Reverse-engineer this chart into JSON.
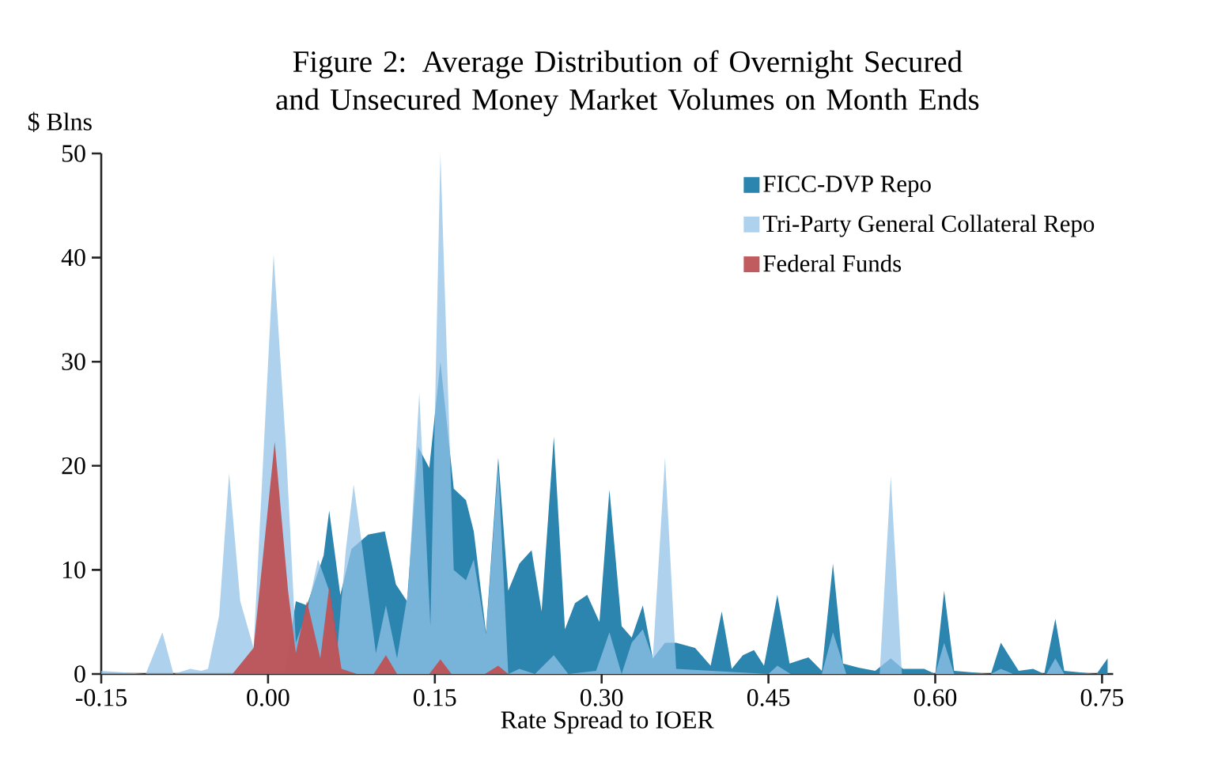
{
  "chart_data": {
    "type": "area",
    "title": "Figure 2: Average Distribution of Overnight Secured and Unsecured Money Market Volumes on Month Ends",
    "ylabel": "$ Blns",
    "xlabel": "Rate Spread to IOER",
    "xlim": [
      -0.15,
      0.76
    ],
    "ylim": [
      0,
      50
    ],
    "xticks": [
      -0.15,
      {
        "value": 0,
        "label": "0.00"
      },
      0.15,
      {
        "value": 0.3,
        "label": "0.30"
      },
      0.45,
      {
        "value": 0.6,
        "label": "0.60"
      },
      0.75
    ],
    "yticks": [
      0,
      10,
      20,
      30,
      40,
      50
    ],
    "legend": "top right",
    "grid": false,
    "series": [
      {
        "name": "FICC-DVP Repo",
        "color": "#2b85ae",
        "x": [
          -0.15,
          0.015,
          0.025,
          0.035,
          0.05,
          0.055,
          0.065,
          0.075,
          0.09,
          0.105,
          0.115,
          0.125,
          0.135,
          0.145,
          0.155,
          0.167,
          0.178,
          0.185,
          0.196,
          0.207,
          0.216,
          0.226,
          0.237,
          0.246,
          0.257,
          0.267,
          0.276,
          0.287,
          0.298,
          0.307,
          0.318,
          0.327,
          0.337,
          0.346,
          0.357,
          0.367,
          0.384,
          0.398,
          0.408,
          0.417,
          0.427,
          0.437,
          0.446,
          0.458,
          0.469,
          0.486,
          0.498,
          0.508,
          0.517,
          0.531,
          0.546,
          0.56,
          0.571,
          0.59,
          0.6,
          0.608,
          0.617,
          0.65,
          0.659,
          0.675,
          0.688,
          0.698,
          0.708,
          0.716,
          0.745,
          0.755
        ],
        "values": [
          0,
          0,
          7,
          6.6,
          11.4,
          15.7,
          7.6,
          12,
          13.4,
          13.7,
          8.6,
          7,
          21.8,
          19.8,
          30,
          17.8,
          16.7,
          13.7,
          4,
          20.8,
          8,
          10.6,
          11.9,
          6,
          22.8,
          4.3,
          6.8,
          7.6,
          5,
          17.7,
          4.6,
          3.5,
          6.6,
          1.5,
          3,
          3,
          2.5,
          0.8,
          6,
          0.5,
          1.8,
          2.3,
          0.8,
          7.6,
          1,
          1.6,
          0.3,
          10.6,
          1,
          0.6,
          0.3,
          1.5,
          0.5,
          0.5,
          0,
          8,
          0.3,
          0,
          3,
          0.3,
          0.5,
          0,
          5.3,
          0.3,
          0,
          1.5
        ]
      },
      {
        "name": "Tri-Party General Collateral Repo",
        "color": "#93c3e7",
        "x": [
          -0.15,
          -0.11,
          -0.095,
          -0.085,
          -0.07,
          -0.06,
          -0.054,
          -0.044,
          -0.035,
          -0.025,
          -0.013,
          0.005,
          0.016,
          0.025,
          0.035,
          0.045,
          0.055,
          0.062,
          0.07,
          0.077,
          0.085,
          0.097,
          0.106,
          0.116,
          0.126,
          0.136,
          0.146,
          0.155,
          0.167,
          0.178,
          0.185,
          0.196,
          0.207,
          0.216,
          0.226,
          0.24,
          0.257,
          0.27,
          0.295,
          0.307,
          0.318,
          0.327,
          0.337,
          0.346,
          0.357,
          0.367,
          0.45,
          0.458,
          0.47,
          0.498,
          0.508,
          0.52,
          0.55,
          0.56,
          0.57,
          0.6,
          0.608,
          0.617,
          0.65,
          0.659,
          0.67,
          0.7,
          0.708,
          0.716,
          0.755
        ],
        "values": [
          0.3,
          0,
          4,
          0,
          0.5,
          0.3,
          0.5,
          5.6,
          19.3,
          7,
          2.5,
          40.3,
          22,
          3,
          6,
          11,
          8,
          2,
          12,
          18.2,
          12,
          2,
          6.6,
          1.5,
          8,
          27,
          4.6,
          50,
          10,
          9,
          11,
          3.8,
          20,
          0,
          0.5,
          0,
          1.8,
          0,
          0.3,
          4,
          0,
          3,
          4.3,
          1.5,
          20.8,
          0.5,
          0,
          0.8,
          0,
          0,
          4,
          0,
          0,
          19,
          0,
          0,
          3,
          0,
          0,
          0.5,
          0,
          0,
          1.5,
          0,
          0
        ]
      },
      {
        "name": "Federal Funds",
        "color": "#bd5256",
        "x": [
          -0.15,
          -0.05,
          -0.032,
          -0.013,
          0.006,
          0.018,
          0.025,
          0.035,
          0.047,
          0.055,
          0.066,
          0.08,
          0.095,
          0.106,
          0.116,
          0.145,
          0.155,
          0.165,
          0.195,
          0.207,
          0.216,
          0.75
        ],
        "values": [
          0,
          0,
          0,
          2.5,
          22.3,
          8,
          2,
          7,
          1.5,
          8.4,
          0.5,
          0,
          0,
          1.8,
          0,
          0,
          1.4,
          0,
          0,
          0.8,
          0,
          0
        ]
      }
    ]
  }
}
